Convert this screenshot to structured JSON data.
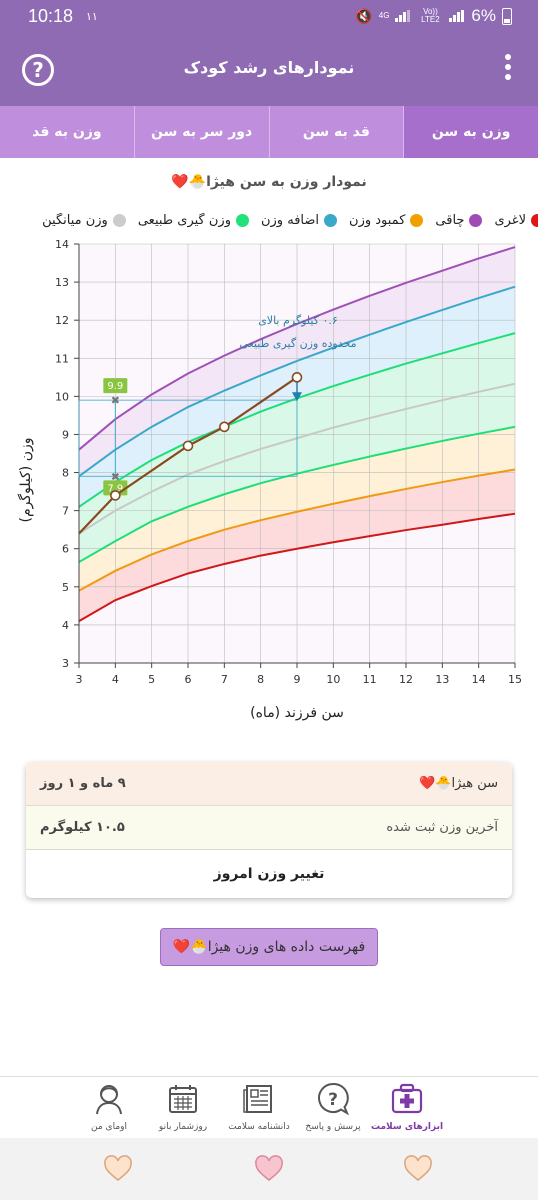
{
  "status": {
    "time": "10:18",
    "extra": "۱۱",
    "net_top": "4G",
    "net_mid": "Vo)) LTE2",
    "battery": "6%"
  },
  "header": {
    "title": "نمودارهای رشد کودک",
    "help_glyph": "?"
  },
  "tabs": [
    {
      "label": "وزن به سن",
      "active": true
    },
    {
      "label": "قد به سن",
      "active": false
    },
    {
      "label": "دور سر به سن",
      "active": false
    },
    {
      "label": "وزن به قد",
      "active": false
    }
  ],
  "chart_title": "نمودار وزن به سن هیژا🐣❤️",
  "legend": [
    {
      "label": "لاغری",
      "color": "#e01515"
    },
    {
      "label": "چاقی",
      "color": "#a04ab8"
    },
    {
      "label": "کمبود وزن",
      "color": "#f0a000"
    },
    {
      "label": "اضافه وزن",
      "color": "#3aa8c8"
    },
    {
      "label": "وزن گیری طبیعی",
      "color": "#22e07a"
    },
    {
      "label": "وزن میانگین",
      "color": "#cccccc"
    }
  ],
  "chart_data": {
    "type": "line",
    "xlabel": "سن فرزند (ماه)",
    "ylabel": "وزن (کیلوگرم)",
    "xlim": [
      3,
      15
    ],
    "ylim": [
      3,
      14
    ],
    "x_ticks": [
      3,
      4,
      5,
      6,
      7,
      8,
      9,
      10,
      11,
      12,
      13,
      14,
      15
    ],
    "y_ticks": [
      3,
      4,
      5,
      6,
      7,
      8,
      9,
      10,
      11,
      12,
      13,
      14
    ],
    "grid": true,
    "curves": [
      {
        "key": "thinness",
        "color": "#d01818",
        "fill": "#fdd6d6",
        "x": [
          3,
          4,
          5,
          6,
          7,
          8,
          9,
          10,
          11,
          12,
          13,
          14,
          15
        ],
        "y": [
          4.1,
          4.65,
          5.02,
          5.35,
          5.6,
          5.82,
          6.0,
          6.17,
          6.33,
          6.49,
          6.63,
          6.78,
          6.92
        ]
      },
      {
        "key": "underweight",
        "color": "#f09a10",
        "fill": "#fff0d0",
        "x": [
          3,
          4,
          5,
          6,
          7,
          8,
          9,
          10,
          11,
          12,
          13,
          14,
          15
        ],
        "y": [
          4.9,
          5.42,
          5.85,
          6.2,
          6.5,
          6.75,
          6.97,
          7.18,
          7.38,
          7.57,
          7.75,
          7.92,
          8.08
        ]
      },
      {
        "key": "normal_low",
        "color": "#1ddf77",
        "fill": "#d3f8e4",
        "x": [
          3,
          4,
          5,
          6,
          7,
          8,
          9,
          10,
          11,
          12,
          13,
          14,
          15
        ],
        "y": [
          5.65,
          6.2,
          6.72,
          7.1,
          7.43,
          7.72,
          7.97,
          8.2,
          8.42,
          8.63,
          8.83,
          9.02,
          9.2
        ]
      },
      {
        "key": "median",
        "color": "#c8c8c8",
        "fill": "#d3f8e4",
        "x": [
          3,
          4,
          5,
          6,
          7,
          8,
          9,
          10,
          11,
          12,
          13,
          14,
          15
        ],
        "y": [
          6.4,
          7.0,
          7.5,
          7.95,
          8.3,
          8.62,
          8.9,
          9.18,
          9.43,
          9.67,
          9.9,
          10.12,
          10.33
        ]
      },
      {
        "key": "normal_high",
        "color": "#1ddf77",
        "fill": "#d8eefa",
        "x": [
          3,
          4,
          5,
          6,
          7,
          8,
          9,
          10,
          11,
          12,
          13,
          14,
          15
        ],
        "y": [
          7.1,
          7.75,
          8.33,
          8.8,
          9.2,
          9.6,
          9.95,
          10.27,
          10.57,
          10.86,
          11.13,
          11.4,
          11.66
        ]
      },
      {
        "key": "overweight",
        "color": "#3aa8c8",
        "fill": "#f1e4f6",
        "x": [
          3,
          4,
          5,
          6,
          7,
          8,
          9,
          10,
          11,
          12,
          13,
          14,
          15
        ],
        "y": [
          7.9,
          8.6,
          9.2,
          9.72,
          10.15,
          10.55,
          10.93,
          11.28,
          11.62,
          11.95,
          12.27,
          12.58,
          12.88
        ]
      },
      {
        "key": "obesity",
        "color": "#a050b8",
        "fill": "",
        "x": [
          3,
          4,
          5,
          6,
          7,
          8,
          9,
          10,
          11,
          12,
          13,
          14,
          15
        ],
        "y": [
          8.6,
          9.4,
          10.05,
          10.6,
          11.07,
          11.5,
          11.9,
          12.28,
          12.64,
          12.98,
          13.3,
          13.62,
          13.92
        ]
      }
    ],
    "child_series": {
      "color": "#8a4a20",
      "x": [
        3,
        4,
        6,
        7,
        9
      ],
      "y": [
        6.4,
        7.4,
        8.7,
        9.2,
        10.5
      ]
    },
    "range_lower": {
      "x": 4,
      "value": 7.9,
      "label": "7.9"
    },
    "range_upper": {
      "x": 4,
      "value": 9.9,
      "label": "9.9"
    },
    "current_marker": {
      "x": 9,
      "value": 9.95
    },
    "annotation": {
      "line1": "۰.۶ کیلوگرم بالای",
      "line2": "محدوده وزن گیری طبیعی"
    }
  },
  "info": {
    "age_label": "سن هیژا🐣❤️",
    "age_value": "۹ ماه و ۱ روز",
    "last_weight_label": "آخرین وزن ثبت شده",
    "last_weight_value": "۱۰.۵ کیلوگرم",
    "change_weight": "تغییر وزن امروز"
  },
  "list_button": "فهرست داده های وزن هیژا🐣❤️",
  "bottom_nav": [
    {
      "label": "ابزارهای سلامت",
      "icon": "health-kit-icon",
      "active": true
    },
    {
      "label": "پرسش و پاسخ",
      "icon": "question-bubble-icon",
      "active": false
    },
    {
      "label": "دانشنامه سلامت",
      "icon": "encyclopedia-icon",
      "active": false
    },
    {
      "label": "روزشمار بانو",
      "icon": "calendar-icon",
      "active": false
    },
    {
      "label": "اومای من",
      "icon": "profile-icon",
      "active": false
    }
  ]
}
